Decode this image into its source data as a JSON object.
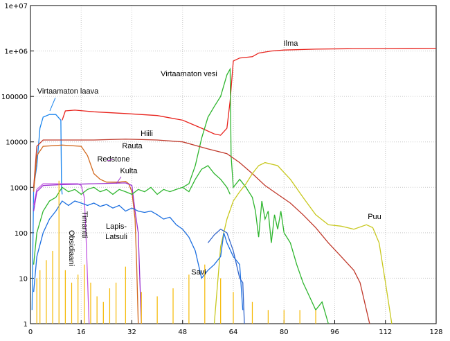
{
  "chart_data": {
    "type": "line",
    "title": "",
    "xlabel": "",
    "ylabel": "",
    "xlim": [
      0,
      128
    ],
    "ylim": [
      1,
      10000000
    ],
    "yscale": "log",
    "grid": true,
    "x_ticks": [
      0,
      16,
      32,
      48,
      64,
      80,
      96,
      112,
      128
    ],
    "x_tick_labels": [
      "0",
      "16",
      "32",
      "48",
      "64",
      "80",
      "96",
      "112",
      "128"
    ],
    "y_ticks": [
      1,
      10,
      100,
      1000,
      10000,
      100000,
      1000000,
      10000000
    ],
    "y_tick_labels": [
      "1",
      "10",
      "100",
      "1000",
      "10000",
      "100000",
      "1e+06",
      "1e+07"
    ],
    "series": [
      {
        "name": "Ilma",
        "color": "#e8221c",
        "points": [
          [
            10,
            30000
          ],
          [
            11,
            48000
          ],
          [
            14,
            50000
          ],
          [
            20,
            46000
          ],
          [
            30,
            42000
          ],
          [
            40,
            38000
          ],
          [
            48,
            30000
          ],
          [
            54,
            20000
          ],
          [
            58,
            15000
          ],
          [
            60,
            14000
          ],
          [
            62,
            20000
          ],
          [
            63,
            80000
          ],
          [
            64,
            600000
          ],
          [
            66,
            700000
          ],
          [
            70,
            750000
          ],
          [
            72,
            900000
          ],
          [
            76,
            1000000
          ],
          [
            80,
            1050000
          ],
          [
            90,
            1100000
          ],
          [
            100,
            1120000
          ],
          [
            110,
            1130000
          ],
          [
            120,
            1140000
          ],
          [
            128,
            1150000
          ]
        ]
      },
      {
        "name": "Virtaamaton vesi",
        "color": "#2db52d",
        "points": [
          [
            48,
            1000
          ],
          [
            50,
            1200
          ],
          [
            52,
            3000
          ],
          [
            54,
            12000
          ],
          [
            56,
            35000
          ],
          [
            58,
            60000
          ],
          [
            60,
            100000
          ],
          [
            62,
            300000
          ],
          [
            63,
            400000
          ],
          [
            63.3,
            5000
          ],
          [
            64,
            1000
          ],
          [
            66,
            1500
          ],
          [
            68,
            1000
          ],
          [
            70,
            600
          ],
          [
            71,
            300
          ],
          [
            72,
            80
          ],
          [
            73,
            500
          ],
          [
            74,
            200
          ],
          [
            75,
            300
          ],
          [
            76,
            60
          ],
          [
            77,
            250
          ],
          [
            78,
            120
          ],
          [
            79,
            300
          ],
          [
            80,
            100
          ],
          [
            82,
            60
          ],
          [
            84,
            20
          ],
          [
            86,
            8
          ],
          [
            88,
            4
          ],
          [
            90,
            2
          ],
          [
            92,
            3
          ],
          [
            94,
            1
          ]
        ]
      },
      {
        "name": "Virtaamaton laava",
        "color": "#1c86ee",
        "points": [
          [
            0.5,
            2
          ],
          [
            1,
            1000
          ],
          [
            2,
            3000
          ],
          [
            3,
            20000
          ],
          [
            4,
            35000
          ],
          [
            6,
            40000
          ],
          [
            8,
            40000
          ],
          [
            9.6,
            30000
          ],
          [
            9.8,
            1000
          ],
          [
            10,
            700
          ]
        ]
      },
      {
        "name": "Hiili",
        "color": "#c0392b",
        "points": [
          [
            1,
            1000
          ],
          [
            2,
            8000
          ],
          [
            4,
            11000
          ],
          [
            10,
            11000
          ],
          [
            20,
            11000
          ],
          [
            30,
            11500
          ],
          [
            40,
            11000
          ],
          [
            48,
            10000
          ],
          [
            56,
            7000
          ],
          [
            62,
            5500
          ],
          [
            66,
            3500
          ],
          [
            70,
            2000
          ],
          [
            74,
            1100
          ],
          [
            78,
            700
          ],
          [
            82,
            450
          ],
          [
            86,
            250
          ],
          [
            90,
            130
          ],
          [
            94,
            60
          ],
          [
            98,
            30
          ],
          [
            102,
            15
          ],
          [
            104,
            8
          ],
          [
            106,
            2
          ],
          [
            107,
            1
          ]
        ]
      },
      {
        "name": "Rauta",
        "color": "#d2691e",
        "points": [
          [
            1,
            800
          ],
          [
            2,
            5000
          ],
          [
            4,
            8000
          ],
          [
            10,
            8500
          ],
          [
            16,
            8000
          ],
          [
            18,
            5000
          ],
          [
            20,
            2000
          ],
          [
            22,
            1500
          ],
          [
            24,
            1300
          ],
          [
            28,
            1300
          ],
          [
            30,
            1350
          ],
          [
            31,
            1200
          ],
          [
            32,
            800
          ],
          [
            33,
            200
          ],
          [
            33.5,
            20
          ],
          [
            34,
            1
          ]
        ]
      },
      {
        "name": "Redstone",
        "color": "#c056e0",
        "points": [
          [
            1,
            400
          ],
          [
            2,
            900
          ],
          [
            4,
            1200
          ],
          [
            10,
            1200
          ],
          [
            15,
            1200
          ],
          [
            16,
            1100
          ],
          [
            17,
            600
          ],
          [
            17.5,
            100
          ],
          [
            18,
            10
          ],
          [
            18.5,
            1
          ]
        ]
      },
      {
        "name": "Kulta",
        "color": "#9b30d0",
        "points": [
          [
            1,
            300
          ],
          [
            2,
            800
          ],
          [
            4,
            1100
          ],
          [
            10,
            1150
          ],
          [
            20,
            1200
          ],
          [
            30,
            1250
          ],
          [
            32,
            1100
          ],
          [
            33,
            300
          ],
          [
            34,
            100
          ],
          [
            34.5,
            10
          ],
          [
            35,
            1
          ]
        ]
      },
      {
        "name": "Puu",
        "color": "#c8c81e",
        "points": [
          [
            58,
            1
          ],
          [
            60,
            50
          ],
          [
            62,
            200
          ],
          [
            64,
            500
          ],
          [
            66,
            800
          ],
          [
            68,
            1200
          ],
          [
            70,
            2000
          ],
          [
            72,
            3000
          ],
          [
            74,
            3500
          ],
          [
            78,
            3000
          ],
          [
            82,
            1500
          ],
          [
            86,
            600
          ],
          [
            90,
            250
          ],
          [
            94,
            150
          ],
          [
            98,
            140
          ],
          [
            102,
            120
          ],
          [
            106,
            150
          ],
          [
            108,
            130
          ],
          [
            110,
            60
          ],
          [
            112,
            8
          ],
          [
            114,
            1
          ]
        ]
      },
      {
        "name": "Timantti",
        "color": "#2db52d",
        "points": [
          [
            1,
            20
          ],
          [
            2,
            100
          ],
          [
            4,
            300
          ],
          [
            6,
            500
          ],
          [
            8,
            600
          ],
          [
            10,
            1000
          ],
          [
            12,
            800
          ],
          [
            14,
            900
          ],
          [
            16,
            700
          ],
          [
            18,
            900
          ],
          [
            20,
            1000
          ],
          [
            22,
            800
          ],
          [
            24,
            900
          ],
          [
            26,
            700
          ],
          [
            28,
            900
          ],
          [
            30,
            800
          ],
          [
            32,
            700
          ],
          [
            34,
            900
          ],
          [
            36,
            800
          ],
          [
            38,
            1000
          ],
          [
            40,
            700
          ],
          [
            42,
            900
          ],
          [
            44,
            800
          ],
          [
            46,
            900
          ],
          [
            48,
            1000
          ],
          [
            50,
            800
          ],
          [
            52,
            1500
          ],
          [
            54,
            2500
          ],
          [
            56,
            3000
          ],
          [
            58,
            2000
          ],
          [
            60,
            1500
          ],
          [
            62,
            1000
          ],
          [
            63,
            700
          ]
        ]
      },
      {
        "name": "Lapis-Latsuli",
        "color": "#1c6fe0",
        "points": [
          [
            1,
            5
          ],
          [
            2,
            30
          ],
          [
            4,
            100
          ],
          [
            6,
            200
          ],
          [
            8,
            300
          ],
          [
            10,
            500
          ],
          [
            12,
            400
          ],
          [
            14,
            500
          ],
          [
            16,
            450
          ],
          [
            18,
            400
          ],
          [
            20,
            450
          ],
          [
            22,
            380
          ],
          [
            24,
            420
          ],
          [
            26,
            350
          ],
          [
            28,
            400
          ],
          [
            30,
            300
          ],
          [
            32,
            350
          ],
          [
            34,
            300
          ],
          [
            36,
            280
          ],
          [
            38,
            300
          ],
          [
            40,
            250
          ],
          [
            42,
            200
          ],
          [
            44,
            220
          ],
          [
            46,
            150
          ],
          [
            48,
            120
          ],
          [
            50,
            80
          ],
          [
            52,
            40
          ],
          [
            54,
            10
          ],
          [
            56,
            15
          ],
          [
            58,
            20
          ],
          [
            60,
            30
          ],
          [
            61,
            100
          ],
          [
            62,
            60
          ],
          [
            64,
            30
          ],
          [
            66,
            20
          ],
          [
            67,
            2
          ]
        ]
      },
      {
        "name": "Savi",
        "color": "#3366cc",
        "points": [
          [
            56,
            60
          ],
          [
            58,
            90
          ],
          [
            60,
            120
          ],
          [
            62,
            100
          ],
          [
            64,
            40
          ],
          [
            65,
            20
          ],
          [
            66,
            10
          ],
          [
            67,
            8
          ],
          [
            67.5,
            1
          ]
        ]
      },
      {
        "name": "Obsidiaani",
        "color": "#f5b800",
        "points": [
          [
            2,
            10
          ],
          [
            3,
            15
          ],
          [
            5,
            25
          ],
          [
            7,
            40
          ],
          [
            9,
            1400
          ],
          [
            11,
            15
          ],
          [
            13,
            8
          ],
          [
            15,
            12
          ],
          [
            17,
            20
          ],
          [
            19,
            8
          ],
          [
            21,
            4
          ],
          [
            23,
            3
          ],
          [
            25,
            6
          ],
          [
            27,
            8
          ],
          [
            30,
            18
          ],
          [
            35,
            5
          ],
          [
            40,
            4
          ],
          [
            45,
            6
          ],
          [
            50,
            12
          ],
          [
            55,
            20
          ],
          [
            60,
            10
          ],
          [
            64,
            5
          ],
          [
            70,
            3
          ],
          [
            75,
            2
          ],
          [
            80,
            2
          ],
          [
            85,
            2
          ],
          [
            90,
            2
          ],
          [
            95,
            1
          ]
        ]
      }
    ],
    "annotations": [
      {
        "label": "Ilma"
      },
      {
        "label": "Virtaamaton vesi"
      },
      {
        "label": "Virtaamaton laava"
      },
      {
        "label": "Hiili"
      },
      {
        "label": "Rauta"
      },
      {
        "label": "Redstone"
      },
      {
        "label": "Kulta"
      },
      {
        "label": "Timantti"
      },
      {
        "label": "Obsidiaani"
      },
      {
        "label": "Lapis-"
      },
      {
        "label": "Latsuli"
      },
      {
        "label": "Savi"
      },
      {
        "label": "Puu"
      }
    ]
  }
}
